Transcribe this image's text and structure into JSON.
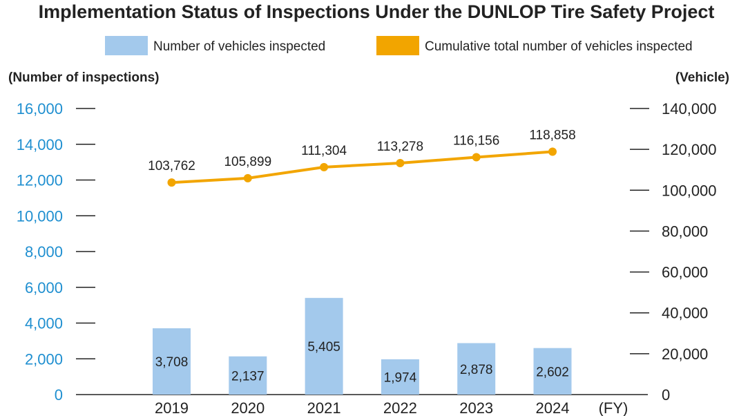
{
  "chart_data": {
    "type": "bar",
    "title": "Implementation Status of Inspections Under the DUNLOP Tire Safety Project",
    "categories": [
      "2019",
      "2020",
      "2021",
      "2022",
      "2023",
      "2024"
    ],
    "xlabel": "(FY)",
    "ylabel_left": "(Number of inspections)",
    "ylabel_right": "(Vehicle)",
    "ylim_left": [
      0,
      16000
    ],
    "ylim_right": [
      0,
      140000
    ],
    "yticks_left": [
      "0",
      "2,000",
      "4,000",
      "6,000",
      "8,000",
      "10,000",
      "12,000",
      "14,000",
      "16,000"
    ],
    "yticks_right": [
      "0",
      "20,000",
      "40,000",
      "60,000",
      "80,000",
      "100,000",
      "120,000",
      "140,000"
    ],
    "legend_position": "top",
    "grid": false,
    "series": [
      {
        "name": "Number of vehicles inspected",
        "type": "bar",
        "axis": "left",
        "color": "#a3c9ec",
        "values": [
          3708,
          2137,
          5405,
          1974,
          2878,
          2602
        ],
        "labels": [
          "3,708",
          "2,137",
          "5,405",
          "1,974",
          "2,878",
          "2,602"
        ]
      },
      {
        "name": "Cumulative total number of vehicles inspected",
        "type": "line",
        "axis": "right",
        "color": "#f2a500",
        "values": [
          103762,
          105899,
          111304,
          113278,
          116156,
          118858
        ],
        "labels": [
          "103,762",
          "105,899",
          "111,304",
          "113,278",
          "116,156",
          "118,858"
        ]
      }
    ]
  }
}
